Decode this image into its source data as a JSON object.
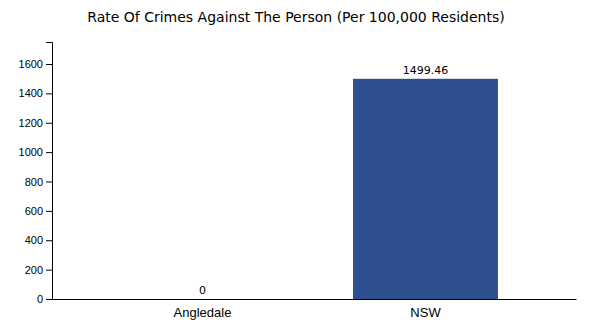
{
  "chart_data": {
    "type": "bar",
    "title": "Rate Of Crimes Against The Person (Per 100,000 Residents)",
    "categories": [
      "Angledale",
      "NSW"
    ],
    "values": [
      0,
      1499.46
    ],
    "color": "#2e5090",
    "ylim": [
      0,
      1750
    ],
    "yticks": [
      0,
      200,
      400,
      600,
      800,
      1000,
      1200,
      1400,
      1600
    ],
    "grid": false,
    "data_labels": true
  }
}
